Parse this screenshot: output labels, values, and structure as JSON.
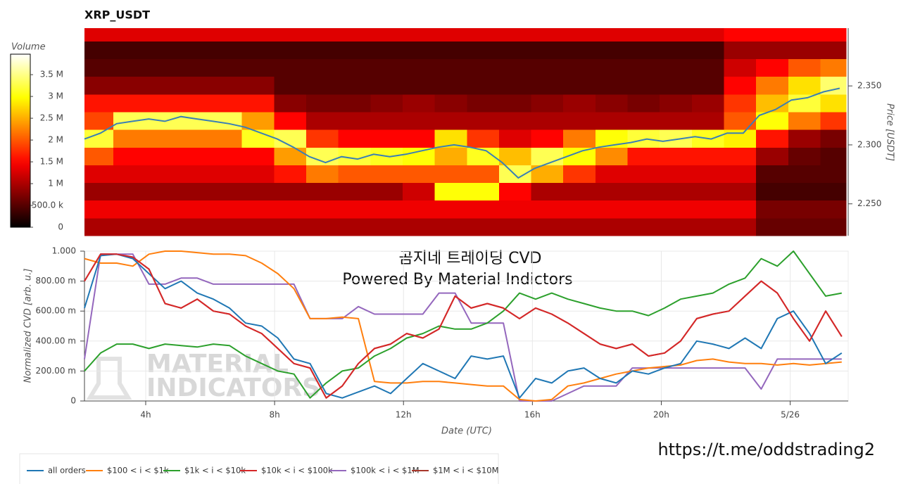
{
  "chart_data": [
    {
      "type": "heatmap",
      "title": "XRP_USDT",
      "x_bins": [
        2.1,
        3,
        4,
        5,
        6,
        7,
        8,
        9,
        10,
        11,
        12,
        13,
        14,
        15,
        16,
        17,
        18,
        19,
        20,
        21,
        22,
        23,
        24,
        25,
        25.8
      ],
      "y_bins": [
        2.223,
        2.238,
        2.253,
        2.268,
        2.283,
        2.298,
        2.313,
        2.328,
        2.343,
        2.358,
        2.373,
        2.388,
        2.399
      ],
      "values": [
        [
          1000000,
          1000000,
          1000000,
          1000000,
          1000000,
          1000000,
          1000000,
          1000000,
          1000000,
          1000000,
          1000000,
          1000000,
          1000000,
          1000000,
          1000000,
          1000000,
          1000000,
          1000000,
          1000000,
          1000000,
          1000000,
          600000,
          600000,
          600000
        ],
        [
          1400000,
          1400000,
          1400000,
          1400000,
          1400000,
          1400000,
          1400000,
          1400000,
          1400000,
          1400000,
          1400000,
          1400000,
          1400000,
          1400000,
          1400000,
          1400000,
          1400000,
          1400000,
          1400000,
          1400000,
          1400000,
          700000,
          700000,
          700000
        ],
        [
          900000,
          900000,
          900000,
          900000,
          900000,
          900000,
          900000,
          900000,
          900000,
          900000,
          1200000,
          3000000,
          3000000,
          1500000,
          1000000,
          1000000,
          1000000,
          1000000,
          1000000,
          1000000,
          1000000,
          400000,
          400000,
          400000
        ],
        [
          1300000,
          1300000,
          1300000,
          1300000,
          1300000,
          1300000,
          1600000,
          2200000,
          2000000,
          2000000,
          2000000,
          2000000,
          2000000,
          3300000,
          2500000,
          1800000,
          1300000,
          1300000,
          1300000,
          1300000,
          1300000,
          500000,
          500000,
          500000
        ],
        [
          2000000,
          1500000,
          1500000,
          1500000,
          1500000,
          1500000,
          2400000,
          3300000,
          3200000,
          3100000,
          3000000,
          2500000,
          3100000,
          2600000,
          3300000,
          3000000,
          2300000,
          1600000,
          1600000,
          1600000,
          1600000,
          900000,
          600000,
          500000
        ],
        [
          3200000,
          2200000,
          2200000,
          2200000,
          2200000,
          3100000,
          3300000,
          1800000,
          1500000,
          1500000,
          1500000,
          2800000,
          1800000,
          1300000,
          1500000,
          2200000,
          3000000,
          3200000,
          3300000,
          3100000,
          2900000,
          1600000,
          900000,
          700000
        ],
        [
          1900000,
          3300000,
          3300000,
          3300000,
          3300000,
          2400000,
          1500000,
          1000000,
          1000000,
          1000000,
          1000000,
          1000000,
          1000000,
          1000000,
          1000000,
          1000000,
          1000000,
          1000000,
          1000000,
          1000000,
          2000000,
          3000000,
          2200000,
          1800000
        ],
        [
          1600000,
          1600000,
          1600000,
          1600000,
          1600000,
          1600000,
          800000,
          700000,
          700000,
          800000,
          900000,
          800000,
          700000,
          700000,
          800000,
          900000,
          800000,
          700000,
          800000,
          900000,
          1800000,
          2600000,
          3200000,
          2800000
        ],
        [
          800000,
          800000,
          800000,
          800000,
          800000,
          800000,
          500000,
          500000,
          500000,
          500000,
          500000,
          500000,
          500000,
          500000,
          500000,
          500000,
          500000,
          500000,
          500000,
          500000,
          1500000,
          2200000,
          2800000,
          3400000
        ],
        [
          500000,
          500000,
          500000,
          500000,
          500000,
          500000,
          500000,
          500000,
          500000,
          500000,
          500000,
          500000,
          500000,
          500000,
          500000,
          500000,
          500000,
          500000,
          500000,
          500000,
          1200000,
          1500000,
          2000000,
          2200000
        ],
        [
          400000,
          400000,
          400000,
          400000,
          400000,
          400000,
          400000,
          400000,
          400000,
          400000,
          400000,
          400000,
          400000,
          400000,
          400000,
          400000,
          400000,
          400000,
          400000,
          400000,
          900000,
          900000,
          900000,
          900000
        ],
        [
          1300000,
          1300000,
          1300000,
          1300000,
          1300000,
          1300000,
          1300000,
          1300000,
          1300000,
          1300000,
          1300000,
          1300000,
          1300000,
          1300000,
          1300000,
          1300000,
          1300000,
          1300000,
          1300000,
          1300000,
          1500000,
          1500000,
          1500000,
          1500000
        ]
      ],
      "colorbar": {
        "title": "Volume",
        "lim": [
          0,
          3970000
        ],
        "ticks": [
          0,
          {
            "value": 500000,
            "label": "500.0 k"
          },
          {
            "value": 1000000,
            "label": "1 M"
          },
          {
            "value": 1500000,
            "label": "1.5 M"
          },
          {
            "value": 2000000,
            "label": "2 M"
          },
          {
            "value": 2500000,
            "label": "2.5 M"
          },
          {
            "value": 3000000,
            "label": "3 M"
          },
          {
            "value": 3500000,
            "label": "3.5 M"
          }
        ]
      },
      "price": {
        "color": "#3a7fb5",
        "x": [
          2.1,
          2.6,
          3.1,
          3.6,
          4.1,
          4.6,
          5.1,
          5.6,
          6.1,
          6.6,
          7.1,
          7.6,
          8.1,
          8.6,
          9.1,
          9.6,
          10.1,
          10.6,
          11.1,
          11.6,
          12.1,
          12.6,
          13.1,
          13.6,
          14.1,
          14.6,
          15.1,
          15.6,
          16.1,
          16.6,
          17.1,
          17.6,
          18.1,
          18.6,
          19.1,
          19.6,
          20.1,
          20.6,
          21.1,
          21.6,
          22.1,
          22.6,
          23.1,
          23.6,
          24.1,
          24.6,
          25.1,
          25.6
        ],
        "values": [
          2.305,
          2.31,
          2.318,
          2.32,
          2.322,
          2.32,
          2.324,
          2.322,
          2.32,
          2.318,
          2.315,
          2.31,
          2.305,
          2.298,
          2.29,
          2.285,
          2.29,
          2.288,
          2.292,
          2.29,
          2.292,
          2.295,
          2.298,
          2.3,
          2.298,
          2.295,
          2.285,
          2.272,
          2.28,
          2.285,
          2.29,
          2.295,
          2.298,
          2.3,
          2.302,
          2.305,
          2.303,
          2.305,
          2.307,
          2.305,
          2.31,
          2.31,
          2.325,
          2.33,
          2.338,
          2.34,
          2.345,
          2.348
        ]
      },
      "xlim": [
        2.1,
        25.8
      ],
      "ylim": [
        2.223,
        2.399
      ],
      "yticks": [
        {
          "value": 2.25,
          "label": "2.250"
        },
        {
          "value": 2.3,
          "label": "2.300"
        },
        {
          "value": 2.35,
          "label": "2.350"
        }
      ],
      "ylabel": "Price [USDT]"
    },
    {
      "type": "line",
      "x": [
        2.1,
        2.6,
        3.1,
        3.6,
        4.1,
        4.6,
        5.1,
        5.6,
        6.1,
        6.6,
        7.1,
        7.6,
        8.1,
        8.6,
        9.1,
        9.6,
        10.1,
        10.6,
        11.1,
        11.6,
        12.1,
        12.6,
        13.1,
        13.6,
        14.1,
        14.6,
        15.1,
        15.6,
        16.1,
        16.6,
        17.1,
        17.6,
        18.1,
        18.6,
        19.1,
        19.6,
        20.1,
        20.6,
        21.1,
        21.6,
        22.1,
        22.6,
        23.1,
        23.6,
        24.1,
        24.6,
        25.1,
        25.6
      ],
      "series": [
        {
          "name": "all orders",
          "color": "#1f77b4",
          "values": [
            0.62,
            0.97,
            0.98,
            0.95,
            0.85,
            0.75,
            0.8,
            0.72,
            0.68,
            0.62,
            0.52,
            0.5,
            0.42,
            0.28,
            0.25,
            0.05,
            0.02,
            0.06,
            0.1,
            0.05,
            0.15,
            0.25,
            0.2,
            0.15,
            0.3,
            0.28,
            0.3,
            0.02,
            0.15,
            0.12,
            0.2,
            0.22,
            0.15,
            0.12,
            0.2,
            0.18,
            0.22,
            0.25,
            0.4,
            0.38,
            0.35,
            0.42,
            0.35,
            0.55,
            0.6,
            0.45,
            0.25,
            0.32
          ]
        },
        {
          "name": "$100 < i < $1k",
          "color": "#ff7f0e",
          "values": [
            0.95,
            0.92,
            0.92,
            0.9,
            0.98,
            1.0,
            1.0,
            0.99,
            0.98,
            0.98,
            0.97,
            0.92,
            0.85,
            0.75,
            0.55,
            0.55,
            0.56,
            0.55,
            0.13,
            0.12,
            0.12,
            0.13,
            0.13,
            0.12,
            0.11,
            0.1,
            0.1,
            0.01,
            0.0,
            0.01,
            0.1,
            0.12,
            0.15,
            0.18,
            0.2,
            0.22,
            0.23,
            0.24,
            0.27,
            0.28,
            0.26,
            0.25,
            0.25,
            0.24,
            0.25,
            0.24,
            0.25,
            0.26
          ]
        },
        {
          "name": "$1k < i < $10k",
          "color": "#2ca02c",
          "values": [
            0.2,
            0.32,
            0.38,
            0.38,
            0.35,
            0.38,
            0.37,
            0.36,
            0.38,
            0.37,
            0.3,
            0.25,
            0.2,
            0.18,
            0.02,
            0.12,
            0.2,
            0.22,
            0.3,
            0.35,
            0.42,
            0.45,
            0.5,
            0.48,
            0.48,
            0.52,
            0.6,
            0.72,
            0.68,
            0.72,
            0.68,
            0.65,
            0.62,
            0.6,
            0.6,
            0.57,
            0.62,
            0.68,
            0.7,
            0.72,
            0.78,
            0.82,
            0.95,
            0.9,
            1.0,
            0.85,
            0.7,
            0.72
          ]
        },
        {
          "name": "$10k < i < $100k",
          "color": "#d62728",
          "values": [
            0.8,
            0.98,
            0.98,
            0.96,
            0.88,
            0.65,
            0.62,
            0.68,
            0.6,
            0.58,
            0.5,
            0.45,
            0.35,
            0.25,
            0.22,
            0.02,
            0.1,
            0.25,
            0.35,
            0.38,
            0.45,
            0.42,
            0.48,
            0.7,
            0.62,
            0.65,
            0.62,
            0.55,
            0.62,
            0.58,
            0.52,
            0.45,
            0.38,
            0.35,
            0.38,
            0.3,
            0.32,
            0.4,
            0.55,
            0.58,
            0.6,
            0.7,
            0.8,
            0.72,
            0.55,
            0.4,
            0.6,
            0.43
          ]
        },
        {
          "name": "$100k < i < $1M",
          "color": "#9467bd",
          "values": [
            0.28,
            0.98,
            0.98,
            0.98,
            0.78,
            0.78,
            0.82,
            0.82,
            0.78,
            0.78,
            0.78,
            0.78,
            0.78,
            0.78,
            0.55,
            0.55,
            0.55,
            0.63,
            0.58,
            0.58,
            0.58,
            0.58,
            0.72,
            0.72,
            0.52,
            0.52,
            0.52,
            0.0,
            0.0,
            0.0,
            0.05,
            0.1,
            0.1,
            0.1,
            0.22,
            0.22,
            0.22,
            0.22,
            0.22,
            0.22,
            0.22,
            0.22,
            0.08,
            0.28,
            0.28,
            0.28,
            0.28,
            0.28
          ]
        },
        {
          "name": "$1M < i < $10M",
          "color": "#a8372b",
          "values": [
            0.8,
            0.98,
            0.98,
            0.96,
            0.88,
            0.65,
            0.62,
            0.68,
            0.6,
            0.58,
            0.5,
            0.45,
            0.35,
            0.25,
            0.22,
            0.02,
            0.1,
            0.25,
            0.35,
            0.38,
            0.45,
            0.42,
            0.48,
            0.7,
            0.62,
            0.65,
            0.62,
            0.55,
            0.62,
            0.58,
            0.52,
            0.45,
            0.38,
            0.35,
            0.38,
            0.3,
            0.32,
            0.4,
            0.55,
            0.58,
            0.6,
            0.7,
            0.8,
            0.72,
            0.55,
            0.4,
            0.6,
            0.43
          ]
        }
      ],
      "xlim": [
        2.1,
        25.8
      ],
      "ylim": [
        0,
        1
      ],
      "xticks": [
        {
          "value": 4,
          "label": "4h"
        },
        {
          "value": 8,
          "label": "8h"
        },
        {
          "value": 12,
          "label": "12h"
        },
        {
          "value": 16,
          "label": "16h"
        },
        {
          "value": 20,
          "label": "20h"
        },
        {
          "value": 24,
          "label": "5/26"
        }
      ],
      "yticks": [
        0,
        {
          "value": 0.2,
          "label": "200.00 m"
        },
        {
          "value": 0.4,
          "label": "400.00 m"
        },
        {
          "value": 0.6,
          "label": "600.00 m"
        },
        {
          "value": 0.8,
          "label": "800.00 m"
        },
        {
          "value": 1,
          "label": "1.000"
        }
      ],
      "xlabel": "Date (UTC)",
      "ylabel": "Normalized CVD [arb. u.]",
      "grid": true,
      "annotations": [
        "곰지네 트레이딩 CVD",
        "Powered By Material Indictors"
      ],
      "watermark": [
        "MATERIAL",
        "INDICATORS"
      ]
    }
  ],
  "link": "https://t.me/oddstrading2"
}
